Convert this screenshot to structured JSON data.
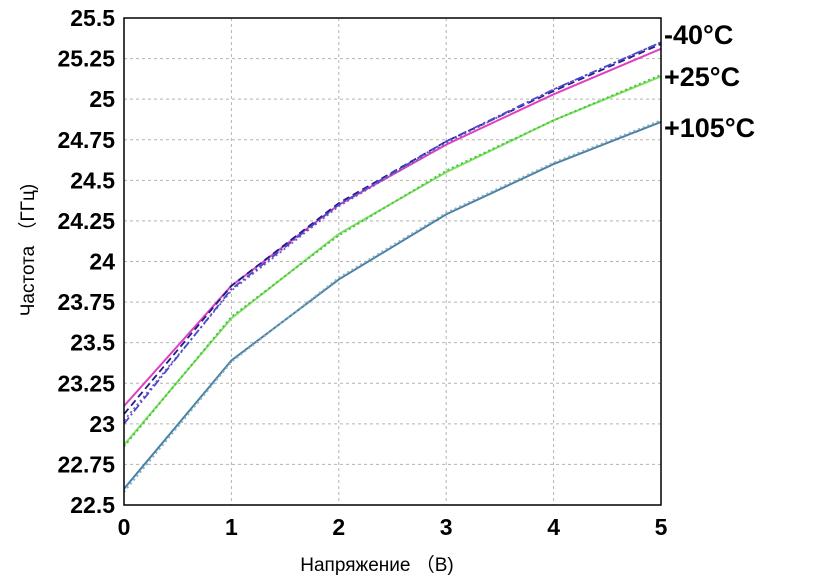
{
  "chart_data": {
    "type": "line",
    "title": "",
    "xlabel": "Напряжение （B)",
    "ylabel": "Частота （ГГц)",
    "x": [
      0,
      1,
      2,
      3,
      4,
      5
    ],
    "xlim": [
      0,
      5
    ],
    "ylim": [
      22.5,
      25.5
    ],
    "x_ticks": [
      "0",
      "1",
      "2",
      "3",
      "4",
      "5"
    ],
    "y_ticks": [
      "22.5",
      "22.75",
      "23",
      "23.25",
      "23.5",
      "23.75",
      "24",
      "24.25",
      "24.5",
      "24.75",
      "25",
      "25.25",
      "25.5"
    ],
    "grid": true,
    "legend": "right-of-plot, labels at line ends",
    "series": [
      {
        "name": "-40°C",
        "color": "#e040c0",
        "style": "solid",
        "values": [
          23.11,
          23.85,
          24.35,
          24.72,
          25.03,
          25.31
        ]
      },
      {
        "name": "",
        "color": "#1e1e8c",
        "style": "dashed",
        "values": [
          23.06,
          23.85,
          24.36,
          24.74,
          25.05,
          25.34
        ]
      },
      {
        "name": "",
        "color": "#7a5ab0",
        "style": "dotted",
        "values": [
          23.02,
          23.82,
          24.34,
          24.73,
          25.06,
          25.35
        ]
      },
      {
        "name": "",
        "color": "#4a4ad0",
        "style": "dashdot",
        "values": [
          23.0,
          23.83,
          24.35,
          24.74,
          25.06,
          25.35
        ]
      },
      {
        "name": "+25°C",
        "color": "#80e060",
        "style": "solid",
        "values": [
          22.87,
          23.65,
          24.17,
          24.55,
          24.87,
          25.14
        ]
      },
      {
        "name": "",
        "color": "#40c040",
        "style": "dotted",
        "values": [
          22.86,
          23.66,
          24.16,
          24.56,
          24.87,
          25.15
        ]
      },
      {
        "name": "+105°C",
        "color": "#4a80a8",
        "style": "solid",
        "values": [
          22.6,
          23.39,
          23.89,
          24.29,
          24.6,
          24.86
        ]
      },
      {
        "name": "",
        "color": "#8ab0b8",
        "style": "dotted",
        "values": [
          22.58,
          23.38,
          23.9,
          24.3,
          24.61,
          24.87
        ]
      }
    ],
    "series_labels": [
      "-40°C",
      "+25°C",
      "+105°C"
    ]
  }
}
